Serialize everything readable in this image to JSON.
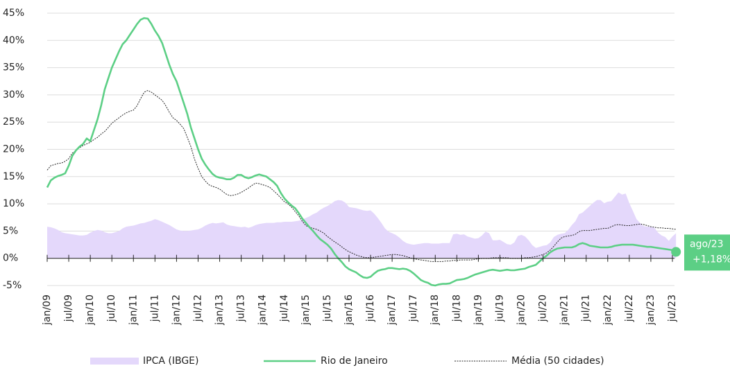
{
  "chart_data": {
    "type": "line",
    "categories": [
      "jan/09",
      null,
      null,
      null,
      null,
      null,
      "jul/09",
      null,
      null,
      null,
      null,
      null,
      "jan/10",
      null,
      null,
      null,
      null,
      null,
      "jul/10",
      null,
      null,
      null,
      null,
      null,
      "jan/11",
      null,
      null,
      null,
      null,
      null,
      "jul/11",
      null,
      null,
      null,
      null,
      null,
      "jan/12",
      null,
      null,
      null,
      null,
      null,
      "jul/12",
      null,
      null,
      null,
      null,
      null,
      "jan/13",
      null,
      null,
      null,
      null,
      null,
      "jul/13",
      null,
      null,
      null,
      null,
      null,
      "jan/14",
      null,
      null,
      null,
      null,
      null,
      "jul/14",
      null,
      null,
      null,
      null,
      null,
      "jan/15",
      null,
      null,
      null,
      null,
      null,
      "jul/15",
      null,
      null,
      null,
      null,
      null,
      "jan/16",
      null,
      null,
      null,
      null,
      null,
      "jul/16",
      null,
      null,
      null,
      null,
      null,
      "jan/17",
      null,
      null,
      null,
      null,
      null,
      "jul/17",
      null,
      null,
      null,
      null,
      null,
      "jan/18",
      null,
      null,
      null,
      null,
      null,
      "jul/18",
      null,
      null,
      null,
      null,
      null,
      "jan/19",
      null,
      null,
      null,
      null,
      null,
      "jul/19",
      null,
      null,
      null,
      null,
      null,
      "jan/20",
      null,
      null,
      null,
      null,
      null,
      "jul/20",
      null,
      null,
      null,
      null,
      null,
      "jan/21",
      null,
      null,
      null,
      null,
      null,
      "jul/21",
      null,
      null,
      null,
      null,
      null,
      "jan/22",
      null,
      null,
      null,
      null,
      null,
      "jul/22",
      null,
      null,
      null,
      null,
      null,
      "jan/23",
      null,
      null,
      null,
      null,
      null,
      "jul/23",
      null
    ],
    "series": [
      {
        "name": "IPCA (IBGE)",
        "color": "#e4d8fb",
        "style": "area",
        "values": [
          5.8,
          5.7,
          5.5,
          5.2,
          4.8,
          4.6,
          4.5,
          4.4,
          4.3,
          4.2,
          4.2,
          4.3,
          4.7,
          5,
          5.2,
          5.1,
          4.8,
          4.6,
          4.6,
          4.8,
          5,
          5.5,
          5.8,
          5.9,
          6,
          6.2,
          6.4,
          6.5,
          6.7,
          6.9,
          7.2,
          7,
          6.7,
          6.4,
          6.1,
          5.7,
          5.3,
          5.1,
          5,
          5,
          5.1,
          5.2,
          5.3,
          5.6,
          6,
          6.3,
          6.5,
          6.4,
          6.5,
          6.6,
          6.2,
          6,
          5.9,
          5.8,
          5.7,
          5.8,
          5.6,
          5.8,
          6.1,
          6.3,
          6.4,
          6.5,
          6.5,
          6.5,
          6.6,
          6.6,
          6.7,
          6.7,
          6.7,
          6.8,
          6.9,
          7.1,
          7.4,
          7.7,
          8.1,
          8.4,
          8.9,
          9.3,
          9.6,
          10,
          10.5,
          10.7,
          10.6,
          10.2,
          9.4,
          9.3,
          9.2,
          9,
          8.8,
          8.7,
          8.8,
          8.2,
          7.4,
          6.5,
          5.5,
          4.9,
          4.6,
          4.3,
          3.8,
          3.2,
          2.8,
          2.6,
          2.5,
          2.6,
          2.7,
          2.8,
          2.8,
          2.7,
          2.7,
          2.7,
          2.8,
          2.8,
          2.8,
          4.4,
          4.5,
          4.3,
          4.4,
          4,
          3.8,
          3.6,
          3.7,
          4.2,
          4.9,
          4.6,
          3.3,
          3.3,
          3.4,
          3,
          2.6,
          2.5,
          2.9,
          4.1,
          4.3,
          4,
          3.3,
          2.4,
          1.9,
          2.1,
          2.3,
          2.4,
          2.9,
          3.9,
          4.3,
          4.5,
          4.6,
          5.2,
          6.1,
          6.8,
          8.1,
          8.4,
          9,
          9.6,
          10.2,
          10.7,
          10.7,
          10.1,
          10.4,
          10.5,
          11.3,
          12.1,
          11.7,
          11.9,
          10.1,
          8.7,
          7.2,
          6.5,
          5.9,
          5.8,
          5.8,
          5.6,
          4.7,
          4.2,
          3.9,
          3.2,
          4,
          4.6
        ]
      },
      {
        "name": "Rio de Janeiro",
        "color": "#5ccf85",
        "style": "line",
        "values": [
          13,
          14.3,
          14.8,
          15.1,
          15.3,
          15.6,
          17,
          18.8,
          19.8,
          20.5,
          21,
          22,
          21.5,
          23.5,
          25.5,
          28,
          31,
          33,
          35,
          36.5,
          38,
          39.3,
          40,
          41,
          42,
          43,
          43.8,
          44.1,
          44,
          43,
          41.8,
          40.8,
          39.5,
          37.5,
          35.5,
          33.8,
          32.5,
          30.5,
          28.5,
          26.5,
          24,
          22,
          20,
          18.3,
          17.2,
          16.3,
          15.5,
          15,
          14.8,
          14.7,
          14.5,
          14.5,
          14.8,
          15.3,
          15.3,
          14.9,
          14.7,
          14.9,
          15.2,
          15.4,
          15.2,
          15,
          14.5,
          14,
          13.3,
          12,
          11,
          10.3,
          9.7,
          9.2,
          8.3,
          7.3,
          6.5,
          5.7,
          5,
          4.2,
          3.5,
          3,
          2.5,
          1.8,
          0.8,
          0,
          -0.7,
          -1.5,
          -2,
          -2.3,
          -2.6,
          -3.1,
          -3.5,
          -3.6,
          -3.4,
          -2.8,
          -2.3,
          -2.1,
          -2,
          -1.8,
          -1.8,
          -1.9,
          -2,
          -1.9,
          -2,
          -2.3,
          -2.8,
          -3.4,
          -4,
          -4.3,
          -4.5,
          -4.9,
          -5,
          -4.8,
          -4.7,
          -4.7,
          -4.6,
          -4.3,
          -4,
          -3.9,
          -3.8,
          -3.6,
          -3.3,
          -3,
          -2.8,
          -2.6,
          -2.4,
          -2.2,
          -2.1,
          -2.2,
          -2.3,
          -2.2,
          -2.1,
          -2.2,
          -2.2,
          -2.1,
          -2,
          -1.9,
          -1.6,
          -1.4,
          -1.2,
          -0.6,
          0,
          0.5,
          1.1,
          1.5,
          1.8,
          1.9,
          2,
          2,
          2,
          2.2,
          2.6,
          2.8,
          2.6,
          2.3,
          2.2,
          2.1,
          2,
          2,
          2,
          2.1,
          2.3,
          2.4,
          2.5,
          2.5,
          2.5,
          2.5,
          2.4,
          2.3,
          2.2,
          2.1,
          2.1,
          2,
          1.9,
          1.8,
          1.7,
          1.6,
          1.5,
          1.18
        ]
      },
      {
        "name": "Média (50 cidades)",
        "color": "#222222",
        "style": "dotted",
        "values": [
          16.2,
          17,
          17.2,
          17.4,
          17.5,
          17.8,
          18.3,
          19.3,
          19.8,
          20.3,
          20.7,
          21,
          21.3,
          21.8,
          22.2,
          22.8,
          23.3,
          24,
          24.8,
          25.3,
          25.8,
          26.3,
          26.7,
          27,
          27.2,
          28,
          29.3,
          30.5,
          30.8,
          30.5,
          30,
          29.5,
          29,
          28,
          26.8,
          25.8,
          25.3,
          24.6,
          23.8,
          22.2,
          20.5,
          18.2,
          16.5,
          15,
          14.2,
          13.5,
          13.2,
          13,
          12.7,
          12.2,
          11.7,
          11.5,
          11.6,
          11.8,
          12.1,
          12.5,
          12.9,
          13.4,
          13.8,
          13.7,
          13.5,
          13.3,
          13,
          12.4,
          11.8,
          11.1,
          10.4,
          10,
          9.4,
          8.6,
          7.8,
          6.8,
          6,
          5.7,
          5.5,
          5.3,
          5,
          4.6,
          4,
          3.5,
          3,
          2.6,
          2.1,
          1.6,
          1.2,
          0.9,
          0.6,
          0.4,
          0.2,
          0.1,
          0.1,
          0.2,
          0.3,
          0.4,
          0.5,
          0.6,
          0.7,
          0.7,
          0.6,
          0.5,
          0.3,
          0.1,
          -0.1,
          -0.2,
          -0.3,
          -0.4,
          -0.5,
          -0.6,
          -0.6,
          -0.6,
          -0.6,
          -0.5,
          -0.5,
          -0.4,
          -0.4,
          -0.3,
          -0.3,
          -0.3,
          -0.3,
          -0.2,
          -0.1,
          0,
          0,
          0,
          0.1,
          0.1,
          0.1,
          0.1,
          0.1,
          0,
          0,
          0,
          0,
          0.1,
          0.1,
          0.2,
          0.3,
          0.5,
          0.7,
          1,
          1.5,
          2.2,
          3,
          3.7,
          4,
          4.1,
          4.2,
          4.4,
          4.9,
          5.1,
          5.1,
          5.1,
          5.2,
          5.3,
          5.4,
          5.5,
          5.5,
          5.8,
          6.1,
          6.2,
          6.1,
          6,
          6,
          6.1,
          6.2,
          6.3,
          6.2,
          6,
          5.8,
          5.7,
          5.6,
          5.6,
          5.5,
          5.5,
          5.4,
          5.3
        ]
      }
    ],
    "annotation": {
      "label": "ago/23",
      "value_label": "+1,18%",
      "color": "#5ccf85"
    },
    "ylim": [
      -5,
      45
    ],
    "yticks": [
      {
        "value": -5,
        "label": "-5%"
      },
      {
        "value": 0,
        "label": "0%"
      },
      {
        "value": 5,
        "label": "5%"
      },
      {
        "value": 10,
        "label": "10%"
      },
      {
        "value": 15,
        "label": "15%"
      },
      {
        "value": 20,
        "label": "20%"
      },
      {
        "value": 25,
        "label": "25%"
      },
      {
        "value": 30,
        "label": "30%"
      },
      {
        "value": 35,
        "label": "35%"
      },
      {
        "value": 40,
        "label": "40%"
      },
      {
        "value": 45,
        "label": "45%"
      }
    ],
    "grid": true,
    "legend": "bottom"
  }
}
